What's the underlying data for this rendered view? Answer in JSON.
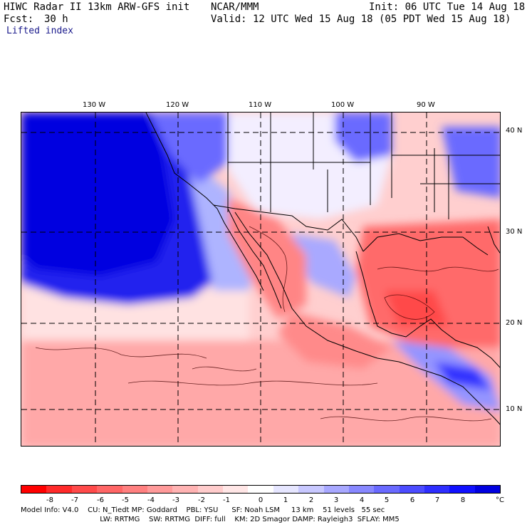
{
  "header": {
    "title_left": "HIWC Radar II 13km ARW-GFS init",
    "org": "NCAR/MMM",
    "init": "Init: 06 UTC Tue 14 Aug 18",
    "fcst_label": "Fcst:",
    "fcst_value": "30 h",
    "valid": "Valid: 12 UTC Wed 15 Aug 18 (05 PDT Wed 15 Aug 18)",
    "field": "Lifted index"
  },
  "map": {
    "lon_labels": [
      "130 W",
      "120 W",
      "110 W",
      "100 W",
      "90 W"
    ],
    "lat_labels": [
      "40 N",
      "30 N",
      "20 N",
      "10 N"
    ]
  },
  "colorbar": {
    "colors": [
      "#ff0000",
      "#ff2a2a",
      "#ff4a4a",
      "#ff6666",
      "#ff8080",
      "#ff9a9a",
      "#ffb3b3",
      "#ffcccc",
      "#ffe6e6",
      "#ffffff",
      "#e6e6ff",
      "#c8c8ff",
      "#a8a8ff",
      "#8888ff",
      "#6a6aff",
      "#4c4cff",
      "#2e2eff",
      "#1010ff",
      "#0000e0"
    ],
    "labels": [
      "-8",
      "-7",
      "-6",
      "-5",
      "-4",
      "-3",
      "-2",
      "-1",
      "0",
      "1",
      "2",
      "3",
      "4",
      "5",
      "6",
      "7",
      "8"
    ],
    "unit": "°C"
  },
  "info": {
    "line1": "Model Info: V4.0    CU: N_Tiedt MP: Goddard    PBL: YSU      SF: Noah LSM     13 km    51 levels   55 sec",
    "line2": "                                   LW: RRTMG    SW: RRTMG  DIFF: full    KM: 2D Smagor DAMP: Rayleigh3  SFLAY: MM5"
  }
}
